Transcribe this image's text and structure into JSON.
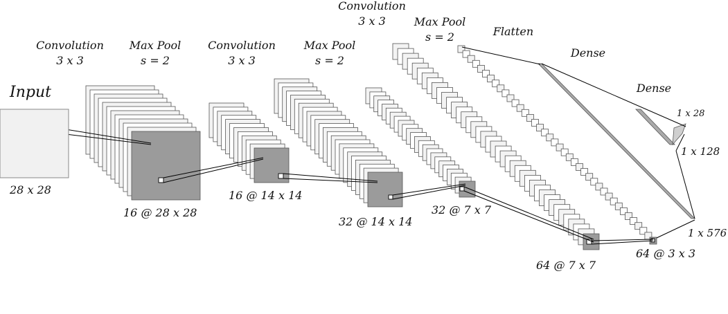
{
  "input": {
    "title": "Input",
    "dims": "28 x 28"
  },
  "stages": [
    {
      "op": "Convolution",
      "param": "3 x 3",
      "shape": "16 @ 28 x 28"
    },
    {
      "op": "Max Pool",
      "param": "s = 2",
      "shape": "16 @ 14 x 14"
    },
    {
      "op": "Convolution",
      "param": "3 x 3",
      "shape": "32 @ 14 x 14"
    },
    {
      "op": "Max Pool",
      "param": "s = 2",
      "shape": "32 @ 7 x 7"
    },
    {
      "op": "Convolution",
      "param": "3 x 3",
      "shape": "64 @ 7 x 7"
    },
    {
      "op": "Max Pool",
      "param": "s = 2",
      "shape": "64 @ 3 x 3"
    }
  ],
  "dense_layers": [
    {
      "op": "Flatten",
      "shape": "1 x 576"
    },
    {
      "op": "Dense",
      "shape": "1 x 128"
    },
    {
      "op": "Dense",
      "shape": "1 x 28"
    }
  ],
  "colors": {
    "map_fill": "#9b9b9b",
    "map_stroke": "#555555",
    "stack_fill": "#f3f3f3",
    "input_fill": "#f1f1f1",
    "connector": "#000000"
  }
}
